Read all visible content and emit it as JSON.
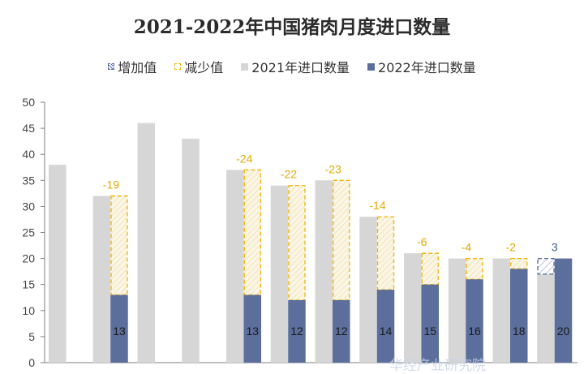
{
  "chart_data": {
    "type": "bar",
    "title": "2021-2022年中国猪肉月度进口数量",
    "legend": [
      {
        "key": "increase",
        "label": "增加值",
        "color": "#4f6b9a"
      },
      {
        "key": "decrease",
        "label": "减少值",
        "color": "#f2b300"
      },
      {
        "key": "y2021",
        "label": "2021年进口数量",
        "color": "#d6d6d6"
      },
      {
        "key": "y2022",
        "label": "2022年进口数量",
        "color": "#5b6e9c"
      }
    ],
    "ylim": [
      0,
      50
    ],
    "yticks": [
      "0",
      "5",
      "10",
      "15",
      "20",
      "25",
      "30",
      "35",
      "40",
      "45",
      "50"
    ],
    "groups": [
      {
        "y2021": 38,
        "y2022": null,
        "diff": null
      },
      {
        "y2021": 32,
        "y2022": 13,
        "diff": -19
      },
      {
        "y2021": 46,
        "y2022": null,
        "diff": null
      },
      {
        "y2021": 43,
        "y2022": null,
        "diff": null
      },
      {
        "y2021": 37,
        "y2022": 13,
        "diff": -24
      },
      {
        "y2021": 34,
        "y2022": 12,
        "diff": -22
      },
      {
        "y2021": 35,
        "y2022": 12,
        "diff": -23
      },
      {
        "y2021": 28,
        "y2022": 14,
        "diff": -14
      },
      {
        "y2021": 21,
        "y2022": 15,
        "diff": -6
      },
      {
        "y2021": 20,
        "y2022": 16,
        "diff": -4
      },
      {
        "y2021": 20,
        "y2022": 18,
        "diff": -2
      },
      {
        "y2021": 17,
        "y2022": 20,
        "diff": 3
      }
    ],
    "data_labels_2022": [
      "13",
      "13",
      "12",
      "12",
      "14",
      "15",
      "16",
      "18",
      "20"
    ],
    "diff_labels": [
      "-19",
      "-24",
      "-22",
      "-23",
      "-14",
      "-6",
      "-4",
      "-2",
      "3"
    ]
  },
  "watermark": "华经产业研究院"
}
